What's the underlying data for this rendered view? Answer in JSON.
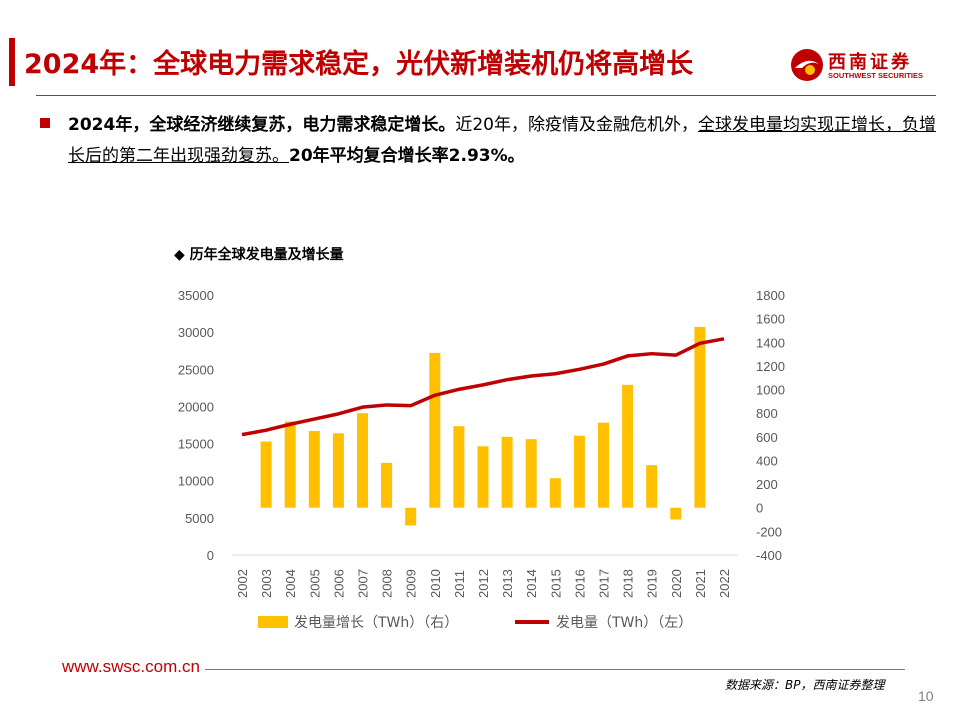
{
  "header": {
    "title": "2024年：全球电力需求稳定，光伏新增装机仍将高增长",
    "logo_cn": "西南证券",
    "logo_en": "SOUTHWEST SECURITIES"
  },
  "body": {
    "bold_lead": "2024年，全球经济继续复苏，电力需求稳定增长。",
    "text_1": "近20年，除疫情及金融危机外，",
    "underlined": "全球发电量均实现正增长，负增长后的第二年出现强劲复苏。",
    "bold_tail": "20年平均复合增长率2.93%。"
  },
  "colors": {
    "brand_red": "#c00000",
    "bar_color": "#ffc000",
    "line_color": "#c00000"
  },
  "chart_data": {
    "type": "bar+line",
    "title": "◆ 历年全球发电量及增长量",
    "categories": [
      "2002",
      "2003",
      "2004",
      "2005",
      "2006",
      "2007",
      "2008",
      "2009",
      "2010",
      "2011",
      "2012",
      "2013",
      "2014",
      "2015",
      "2016",
      "2017",
      "2018",
      "2019",
      "2020",
      "2021",
      "2022"
    ],
    "series": [
      {
        "name": "发电量增长（TWh）（右）",
        "type": "bar",
        "axis": "right",
        "values": [
          null,
          560,
          730,
          650,
          630,
          800,
          380,
          -150,
          1310,
          690,
          520,
          600,
          580,
          250,
          610,
          720,
          1040,
          360,
          -100,
          1530,
          null
        ]
      },
      {
        "name": "发电量（TWh）（左）",
        "type": "line",
        "axis": "left",
        "values": [
          16200,
          16800,
          17600,
          18300,
          19000,
          19900,
          20200,
          20100,
          21500,
          22300,
          22900,
          23600,
          24100,
          24400,
          25000,
          25700,
          26800,
          27100,
          26900,
          28500,
          29100
        ]
      }
    ],
    "left_axis": {
      "min": 0,
      "max": 35000,
      "ticks": [
        "0",
        "5000",
        "10000",
        "15000",
        "20000",
        "25000",
        "30000",
        "35000"
      ]
    },
    "right_axis": {
      "min": -400,
      "max": 1800,
      "ticks": [
        "-400",
        "-200",
        "0",
        "200",
        "400",
        "600",
        "800",
        "1000",
        "1200",
        "1400",
        "1600",
        "1800"
      ]
    },
    "legend_position": "bottom",
    "grid": false
  },
  "footer": {
    "url": "www.swsc.com.cn",
    "source": "数据来源：BP，西南证券整理",
    "page": "10"
  }
}
